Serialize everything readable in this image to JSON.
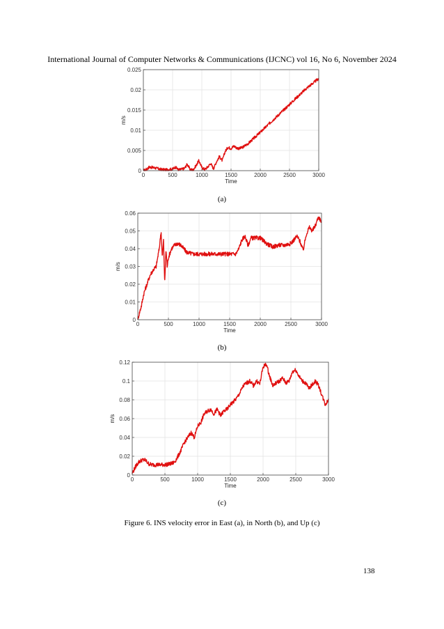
{
  "header": "International Journal of Computer Networks & Communications (IJCNC) vol 16, No 6, November 2024",
  "figure_caption": "Figure 6.  INS velocity error in East (a), in North (b), and Up (c)",
  "page_number": "138",
  "chart_data": [
    {
      "id": "a",
      "type": "line",
      "sublabel": "(a)",
      "xlabel": "Time",
      "ylabel": "m/s",
      "xlim": [
        0,
        3000
      ],
      "ylim": [
        0,
        0.025
      ],
      "xticks": [
        0,
        500,
        1000,
        1500,
        2000,
        2500,
        3000
      ],
      "xtick_labels": [
        "0",
        "500",
        "1000",
        "1500",
        "2000",
        "2500",
        "3000"
      ],
      "yticks": [
        0,
        0.005,
        0.01,
        0.015,
        0.02,
        0.025
      ],
      "ytick_labels": [
        "0",
        "0.005",
        "0.01",
        "0.015",
        "0.02",
        "0.025"
      ],
      "grid": true,
      "line_color": "#e01010",
      "noise": 0.00035,
      "series": [
        {
          "name": "East velocity error",
          "x": [
            0,
            60,
            100,
            200,
            300,
            400,
            500,
            550,
            600,
            700,
            750,
            800,
            850,
            900,
            950,
            1000,
            1050,
            1100,
            1150,
            1200,
            1250,
            1300,
            1350,
            1400,
            1450,
            1500,
            1550,
            1600,
            1650,
            1700,
            1800,
            2000,
            2200,
            2400,
            2600,
            2800,
            3000
          ],
          "y": [
            0,
            0.0004,
            0.0009,
            0.0007,
            0.0003,
            0.0002,
            0.0004,
            0.0009,
            0.0002,
            0.0005,
            0.0016,
            0.0003,
            0.0002,
            0.0012,
            0.0025,
            0.0008,
            0.0003,
            0.0009,
            0.0018,
            0.0005,
            0.0022,
            0.0035,
            0.0025,
            0.0048,
            0.0058,
            0.0055,
            0.0061,
            0.0056,
            0.0055,
            0.0058,
            0.0068,
            0.0095,
            0.0123,
            0.015,
            0.0178,
            0.0205,
            0.0228
          ]
        }
      ]
    },
    {
      "id": "b",
      "type": "line",
      "sublabel": "(b)",
      "xlabel": "Time",
      "ylabel": "m/s",
      "xlim": [
        0,
        3000
      ],
      "ylim": [
        0,
        0.06
      ],
      "xticks": [
        0,
        500,
        1000,
        1500,
        2000,
        2500,
        3000
      ],
      "xtick_labels": [
        "0",
        "500",
        "1000",
        "1500",
        "2000",
        "2500",
        "3000"
      ],
      "yticks": [
        0,
        0.01,
        0.02,
        0.03,
        0.04,
        0.05,
        0.06
      ],
      "ytick_labels": [
        "0",
        "0.01",
        "0.02",
        "0.03",
        "0.04",
        "0.05",
        "0.06"
      ],
      "grid": true,
      "line_color": "#e01010",
      "noise": 0.0012,
      "series": [
        {
          "name": "North velocity error",
          "x": [
            0,
            20,
            60,
            100,
            150,
            200,
            250,
            300,
            350,
            380,
            400,
            420,
            440,
            460,
            480,
            500,
            550,
            600,
            650,
            700,
            800,
            900,
            1000,
            1200,
            1400,
            1500,
            1600,
            1650,
            1700,
            1750,
            1800,
            1850,
            1900,
            2000,
            2100,
            2200,
            2300,
            2400,
            2500,
            2550,
            2600,
            2650,
            2700,
            2750,
            2800,
            2850,
            2900,
            2950,
            3000
          ],
          "y": [
            0,
            0.003,
            0.008,
            0.015,
            0.02,
            0.025,
            0.028,
            0.03,
            0.04,
            0.05,
            0.035,
            0.045,
            0.02,
            0.04,
            0.03,
            0.035,
            0.04,
            0.042,
            0.043,
            0.042,
            0.038,
            0.037,
            0.037,
            0.037,
            0.037,
            0.037,
            0.037,
            0.04,
            0.045,
            0.047,
            0.042,
            0.046,
            0.046,
            0.046,
            0.043,
            0.041,
            0.042,
            0.042,
            0.043,
            0.045,
            0.047,
            0.044,
            0.039,
            0.048,
            0.052,
            0.05,
            0.053,
            0.058,
            0.055
          ]
        }
      ]
    },
    {
      "id": "c",
      "type": "line",
      "sublabel": "(c)",
      "xlabel": "Time",
      "ylabel": "m/s",
      "xlim": [
        0,
        3000
      ],
      "ylim": [
        0,
        0.12
      ],
      "xticks": [
        0,
        500,
        1000,
        1500,
        2000,
        2500,
        3000
      ],
      "xtick_labels": [
        "0",
        "500",
        "1000",
        "1500",
        "2000",
        "2500",
        "3000"
      ],
      "yticks": [
        0,
        0.02,
        0.04,
        0.06,
        0.08,
        0.1,
        0.12
      ],
      "ytick_labels": [
        "0",
        "0.02",
        "0.04",
        "0.06",
        "0.08",
        "0.1",
        "0.12"
      ],
      "grid": true,
      "line_color": "#e01010",
      "noise": 0.0022,
      "series": [
        {
          "name": "Up velocity error",
          "x": [
            0,
            30,
            60,
            100,
            150,
            200,
            250,
            300,
            400,
            500,
            600,
            650,
            700,
            750,
            800,
            850,
            900,
            950,
            1000,
            1050,
            1100,
            1150,
            1200,
            1250,
            1300,
            1350,
            1400,
            1450,
            1500,
            1550,
            1600,
            1650,
            1700,
            1750,
            1800,
            1850,
            1900,
            1950,
            2000,
            2050,
            2100,
            2150,
            2200,
            2250,
            2300,
            2350,
            2400,
            2450,
            2500,
            2550,
            2600,
            2650,
            2700,
            2750,
            2800,
            2850,
            2900,
            2950,
            3000
          ],
          "y": [
            0.002,
            0.006,
            0.01,
            0.014,
            0.016,
            0.016,
            0.012,
            0.011,
            0.011,
            0.011,
            0.012,
            0.014,
            0.02,
            0.027,
            0.035,
            0.04,
            0.045,
            0.04,
            0.052,
            0.056,
            0.065,
            0.068,
            0.07,
            0.065,
            0.07,
            0.063,
            0.068,
            0.07,
            0.075,
            0.078,
            0.082,
            0.088,
            0.095,
            0.098,
            0.1,
            0.095,
            0.1,
            0.097,
            0.115,
            0.118,
            0.105,
            0.095,
            0.098,
            0.1,
            0.103,
            0.098,
            0.1,
            0.11,
            0.112,
            0.105,
            0.1,
            0.098,
            0.092,
            0.096,
            0.1,
            0.095,
            0.085,
            0.075,
            0.08
          ]
        }
      ]
    }
  ]
}
